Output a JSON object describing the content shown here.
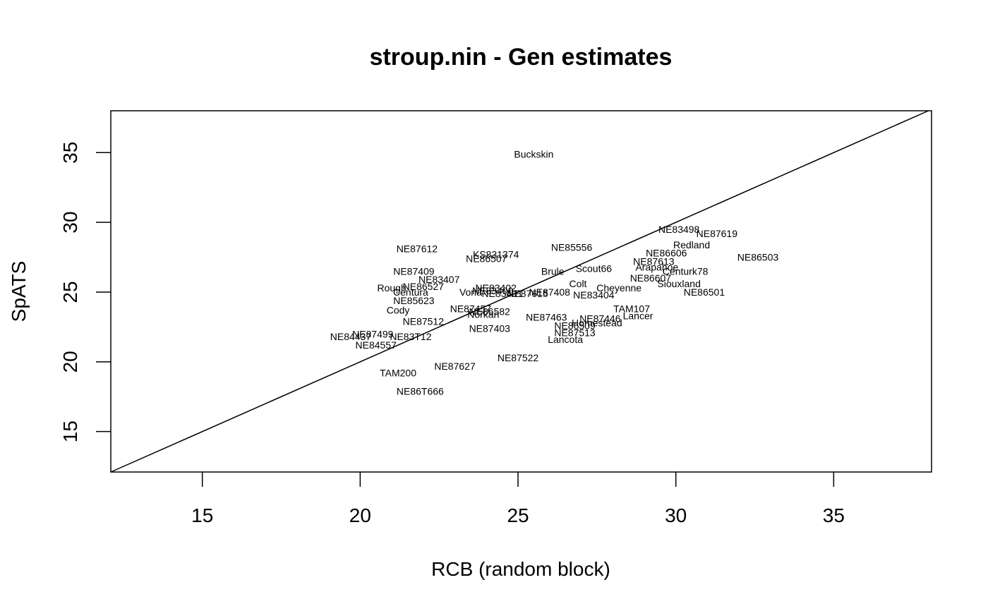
{
  "chart_data": {
    "type": "scatter",
    "title": "stroup.nin - Gen estimates",
    "xlabel": "RCB (random block)",
    "ylabel": "SpATS",
    "xlim": [
      12.1,
      38.1
    ],
    "ylim": [
      12.1,
      38.0
    ],
    "xticks": [
      15,
      20,
      25,
      30,
      35
    ],
    "yticks": [
      15,
      20,
      25,
      30,
      35
    ],
    "grid": false,
    "reference_line": "y = x",
    "points": [
      {
        "label": "Buckskin",
        "x": 25.5,
        "y": 34.9
      },
      {
        "label": "NE83498",
        "x": 30.1,
        "y": 29.5
      },
      {
        "label": "NE87619",
        "x": 31.3,
        "y": 29.2
      },
      {
        "label": "Redland",
        "x": 30.5,
        "y": 28.4
      },
      {
        "label": "NE86503",
        "x": 32.6,
        "y": 27.5
      },
      {
        "label": "NE86606",
        "x": 29.7,
        "y": 27.8
      },
      {
        "label": "NE87613",
        "x": 29.3,
        "y": 27.2
      },
      {
        "label": "Arapahoe",
        "x": 29.4,
        "y": 26.8
      },
      {
        "label": "Centurk78",
        "x": 30.3,
        "y": 26.5
      },
      {
        "label": "NE86607",
        "x": 29.2,
        "y": 26.0
      },
      {
        "label": "Siouxland",
        "x": 30.1,
        "y": 25.6
      },
      {
        "label": "NE86501",
        "x": 30.9,
        "y": 25.0
      },
      {
        "label": "NE85556",
        "x": 26.7,
        "y": 28.2
      },
      {
        "label": "NE87612",
        "x": 21.8,
        "y": 28.1
      },
      {
        "label": "KS831374",
        "x": 24.3,
        "y": 27.7
      },
      {
        "label": "NE86507",
        "x": 24.0,
        "y": 27.4
      },
      {
        "label": "NE87409",
        "x": 21.7,
        "y": 26.5
      },
      {
        "label": "Brule",
        "x": 26.1,
        "y": 26.5
      },
      {
        "label": "Scout66",
        "x": 27.4,
        "y": 26.7
      },
      {
        "label": "NE83407",
        "x": 22.5,
        "y": 25.9
      },
      {
        "label": "Colt",
        "x": 26.9,
        "y": 25.6
      },
      {
        "label": "Cheyenne",
        "x": 28.2,
        "y": 25.3
      },
      {
        "label": "NE86527",
        "x": 22.0,
        "y": 25.4
      },
      {
        "label": "Rough",
        "x": 21.0,
        "y": 25.3
      },
      {
        "label": "Centura",
        "x": 21.6,
        "y": 25.0
      },
      {
        "label": "NE83402",
        "x": 24.3,
        "y": 25.3
      },
      {
        "label": "NE83400",
        "x": 24.2,
        "y": 25.1
      },
      {
        "label": "Vona",
        "x": 23.5,
        "y": 25.0
      },
      {
        "label": "NE83401",
        "x": 24.5,
        "y": 24.9
      },
      {
        "label": "NE87615",
        "x": 25.3,
        "y": 24.9
      },
      {
        "label": "NE87408",
        "x": 26.0,
        "y": 25.0
      },
      {
        "label": "NE83404",
        "x": 27.4,
        "y": 24.8
      },
      {
        "label": "NE85623",
        "x": 21.7,
        "y": 24.4
      },
      {
        "label": "Cody",
        "x": 21.2,
        "y": 23.7
      },
      {
        "label": "NE87457",
        "x": 23.5,
        "y": 23.8
      },
      {
        "label": "NE86582",
        "x": 24.1,
        "y": 23.6
      },
      {
        "label": "Norkan",
        "x": 23.9,
        "y": 23.4
      },
      {
        "label": "NE87463",
        "x": 25.9,
        "y": 23.2
      },
      {
        "label": "TAM107",
        "x": 28.6,
        "y": 23.8
      },
      {
        "label": "Lancer",
        "x": 28.8,
        "y": 23.3
      },
      {
        "label": "NE87446",
        "x": 27.6,
        "y": 23.1
      },
      {
        "label": "Homestead",
        "x": 27.5,
        "y": 22.8
      },
      {
        "label": "NE86509",
        "x": 26.8,
        "y": 22.6
      },
      {
        "label": "NE87513",
        "x": 26.8,
        "y": 22.1
      },
      {
        "label": "NE87512",
        "x": 22.0,
        "y": 22.9
      },
      {
        "label": "NE87403",
        "x": 24.1,
        "y": 22.4
      },
      {
        "label": "Lancota",
        "x": 26.5,
        "y": 21.6
      },
      {
        "label": "NE87499",
        "x": 20.4,
        "y": 22.0
      },
      {
        "label": "NE83T12",
        "x": 21.6,
        "y": 21.8
      },
      {
        "label": "NE84437",
        "x": 19.7,
        "y": 21.8
      },
      {
        "label": "NE84557",
        "x": 20.5,
        "y": 21.2
      },
      {
        "label": "NE87522",
        "x": 25.0,
        "y": 20.3
      },
      {
        "label": "NE87627",
        "x": 23.0,
        "y": 19.7
      },
      {
        "label": "TAM200",
        "x": 21.2,
        "y": 19.2
      },
      {
        "label": "NE86T666",
        "x": 21.9,
        "y": 17.9
      }
    ]
  }
}
